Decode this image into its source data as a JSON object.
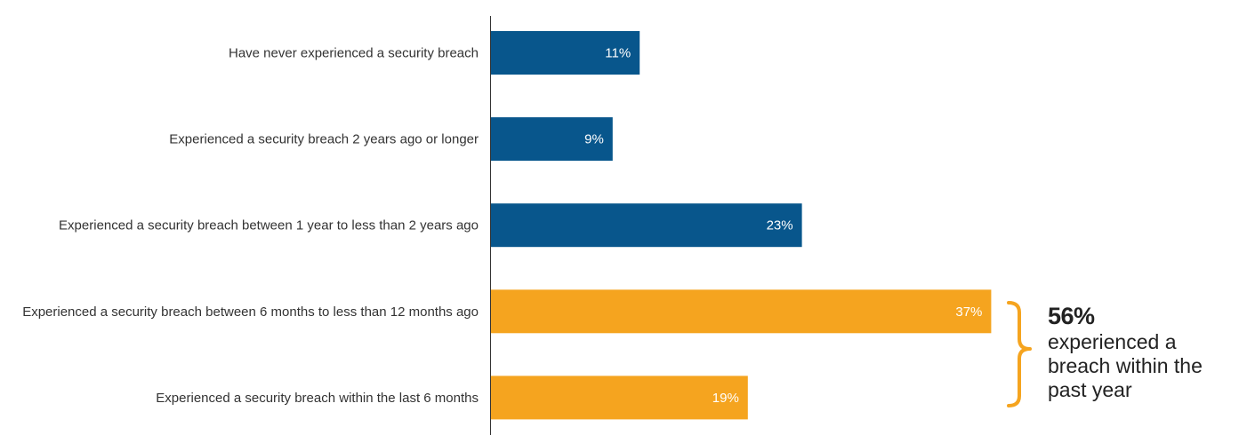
{
  "chart_data": {
    "type": "bar",
    "orientation": "horizontal",
    "categories": [
      "Have never experienced a security breach",
      "Experienced a security breach 2 years ago or longer",
      "Experienced a security breach between 1 year to less than 2 years ago",
      "Experienced a security breach between 6 months to less than 12 months ago",
      "Experienced a security breach within the last 6 months"
    ],
    "values": [
      11,
      9,
      23,
      37,
      19
    ],
    "value_labels": [
      "11%",
      "9%",
      "23%",
      "37%",
      "19%"
    ],
    "bar_colors": [
      "#08568c",
      "#08568c",
      "#08568c",
      "#f5a41f",
      "#f5a41f"
    ],
    "xlim": [
      0,
      40
    ],
    "grid": false
  },
  "callout": {
    "value": "56%",
    "text": "experienced a breach within the past year",
    "bracket_color": "#f5a41f"
  }
}
